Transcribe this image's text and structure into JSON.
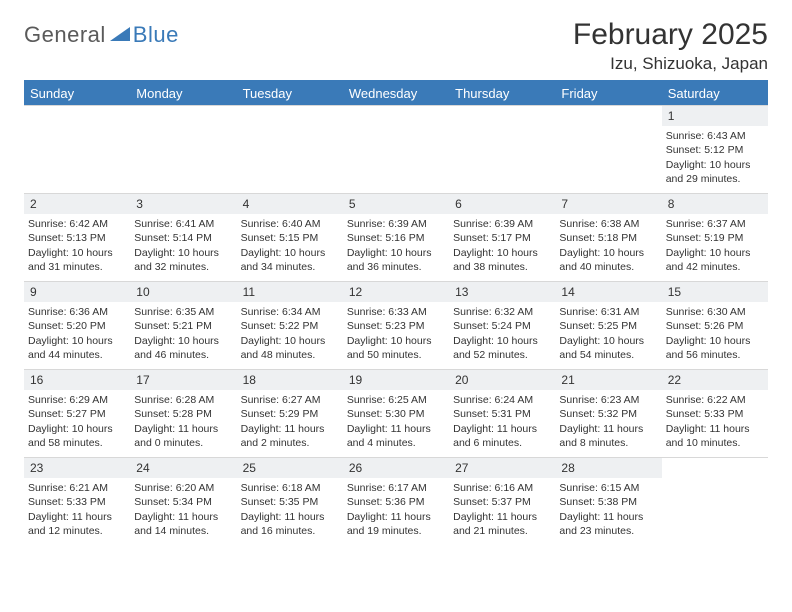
{
  "brand": {
    "part1": "General",
    "part2": "Blue"
  },
  "title": "February 2025",
  "location": "Izu, Shizuoka, Japan",
  "colors": {
    "accent": "#3a7ab8",
    "header_bg": "#3a7ab8",
    "header_text": "#ffffff",
    "daynum_bg": "#eef0f2",
    "divider": "#3a7ab8",
    "cell_border": "#d8d8d8",
    "body_text": "#333333",
    "logo_gray": "#5a5a5a"
  },
  "typography": {
    "title_fontsize": 30,
    "location_fontsize": 17,
    "th_fontsize": 13,
    "cell_fontsize": 10.5,
    "logo_fontsize": 22
  },
  "calendar": {
    "type": "table",
    "columns": [
      "Sunday",
      "Monday",
      "Tuesday",
      "Wednesday",
      "Thursday",
      "Friday",
      "Saturday"
    ],
    "first_weekday_index": 6,
    "num_days": 28,
    "days": [
      {
        "n": 1,
        "sunrise": "6:43 AM",
        "sunset": "5:12 PM",
        "daylight": "10 hours and 29 minutes."
      },
      {
        "n": 2,
        "sunrise": "6:42 AM",
        "sunset": "5:13 PM",
        "daylight": "10 hours and 31 minutes."
      },
      {
        "n": 3,
        "sunrise": "6:41 AM",
        "sunset": "5:14 PM",
        "daylight": "10 hours and 32 minutes."
      },
      {
        "n": 4,
        "sunrise": "6:40 AM",
        "sunset": "5:15 PM",
        "daylight": "10 hours and 34 minutes."
      },
      {
        "n": 5,
        "sunrise": "6:39 AM",
        "sunset": "5:16 PM",
        "daylight": "10 hours and 36 minutes."
      },
      {
        "n": 6,
        "sunrise": "6:39 AM",
        "sunset": "5:17 PM",
        "daylight": "10 hours and 38 minutes."
      },
      {
        "n": 7,
        "sunrise": "6:38 AM",
        "sunset": "5:18 PM",
        "daylight": "10 hours and 40 minutes."
      },
      {
        "n": 8,
        "sunrise": "6:37 AM",
        "sunset": "5:19 PM",
        "daylight": "10 hours and 42 minutes."
      },
      {
        "n": 9,
        "sunrise": "6:36 AM",
        "sunset": "5:20 PM",
        "daylight": "10 hours and 44 minutes."
      },
      {
        "n": 10,
        "sunrise": "6:35 AM",
        "sunset": "5:21 PM",
        "daylight": "10 hours and 46 minutes."
      },
      {
        "n": 11,
        "sunrise": "6:34 AM",
        "sunset": "5:22 PM",
        "daylight": "10 hours and 48 minutes."
      },
      {
        "n": 12,
        "sunrise": "6:33 AM",
        "sunset": "5:23 PM",
        "daylight": "10 hours and 50 minutes."
      },
      {
        "n": 13,
        "sunrise": "6:32 AM",
        "sunset": "5:24 PM",
        "daylight": "10 hours and 52 minutes."
      },
      {
        "n": 14,
        "sunrise": "6:31 AM",
        "sunset": "5:25 PM",
        "daylight": "10 hours and 54 minutes."
      },
      {
        "n": 15,
        "sunrise": "6:30 AM",
        "sunset": "5:26 PM",
        "daylight": "10 hours and 56 minutes."
      },
      {
        "n": 16,
        "sunrise": "6:29 AM",
        "sunset": "5:27 PM",
        "daylight": "10 hours and 58 minutes."
      },
      {
        "n": 17,
        "sunrise": "6:28 AM",
        "sunset": "5:28 PM",
        "daylight": "11 hours and 0 minutes."
      },
      {
        "n": 18,
        "sunrise": "6:27 AM",
        "sunset": "5:29 PM",
        "daylight": "11 hours and 2 minutes."
      },
      {
        "n": 19,
        "sunrise": "6:25 AM",
        "sunset": "5:30 PM",
        "daylight": "11 hours and 4 minutes."
      },
      {
        "n": 20,
        "sunrise": "6:24 AM",
        "sunset": "5:31 PM",
        "daylight": "11 hours and 6 minutes."
      },
      {
        "n": 21,
        "sunrise": "6:23 AM",
        "sunset": "5:32 PM",
        "daylight": "11 hours and 8 minutes."
      },
      {
        "n": 22,
        "sunrise": "6:22 AM",
        "sunset": "5:33 PM",
        "daylight": "11 hours and 10 minutes."
      },
      {
        "n": 23,
        "sunrise": "6:21 AM",
        "sunset": "5:33 PM",
        "daylight": "11 hours and 12 minutes."
      },
      {
        "n": 24,
        "sunrise": "6:20 AM",
        "sunset": "5:34 PM",
        "daylight": "11 hours and 14 minutes."
      },
      {
        "n": 25,
        "sunrise": "6:18 AM",
        "sunset": "5:35 PM",
        "daylight": "11 hours and 16 minutes."
      },
      {
        "n": 26,
        "sunrise": "6:17 AM",
        "sunset": "5:36 PM",
        "daylight": "11 hours and 19 minutes."
      },
      {
        "n": 27,
        "sunrise": "6:16 AM",
        "sunset": "5:37 PM",
        "daylight": "11 hours and 21 minutes."
      },
      {
        "n": 28,
        "sunrise": "6:15 AM",
        "sunset": "5:38 PM",
        "daylight": "11 hours and 23 minutes."
      }
    ],
    "labels": {
      "sunrise": "Sunrise:",
      "sunset": "Sunset:",
      "daylight": "Daylight:"
    }
  }
}
